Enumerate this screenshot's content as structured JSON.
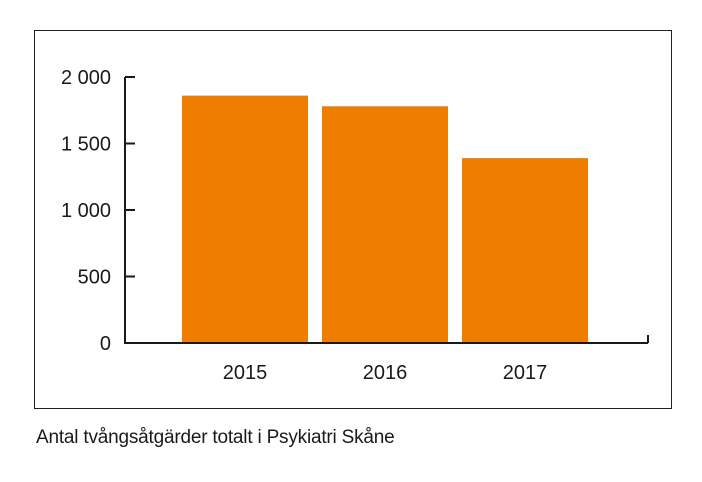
{
  "caption": "Antal tvångsåtgärder totalt i Psykiatri Skåne",
  "colors": {
    "bar": "#ee7d00",
    "axis": "#1a1a1a",
    "frame": "#222222"
  },
  "chart_data": {
    "type": "bar",
    "title": "",
    "xlabel": "",
    "ylabel": "",
    "categories": [
      "2015",
      "2016",
      "2017"
    ],
    "values": [
      1860,
      1780,
      1390
    ],
    "ylim": [
      0,
      2000
    ],
    "yticks": [
      0,
      500,
      1000,
      1500,
      2000
    ],
    "ytick_labels": [
      "0",
      "500",
      "1 000",
      "1 500",
      "2 000"
    ],
    "grid": false,
    "legend": "none"
  }
}
